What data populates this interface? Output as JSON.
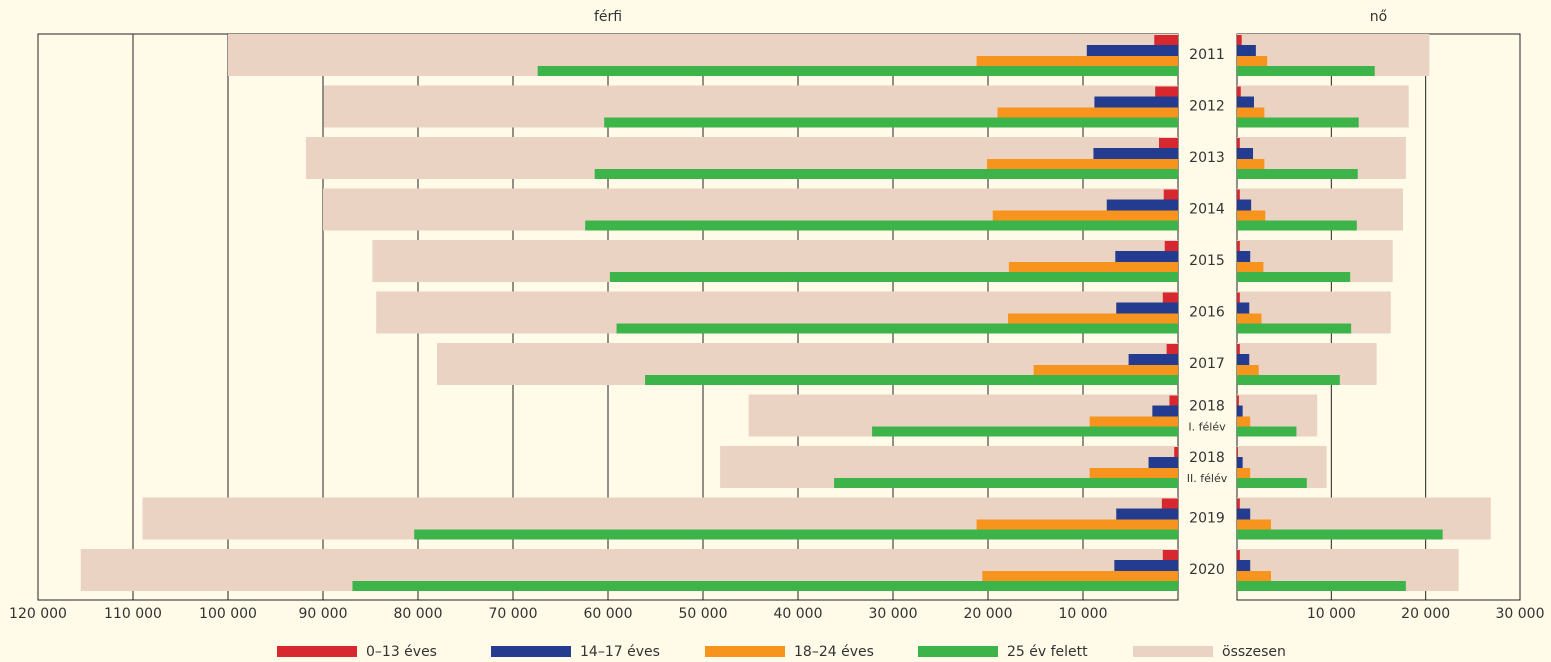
{
  "chart_data": [
    {
      "type": "hbar",
      "title": "férfi",
      "x_reversed": true,
      "categories": [
        "2011",
        "2012",
        "2013",
        "2014",
        "2015",
        "2016",
        "2017",
        "2018",
        "2018",
        "2019",
        "2020"
      ],
      "category_notes": [
        null,
        null,
        null,
        null,
        null,
        null,
        null,
        "I. félév",
        "II. félév",
        null,
        null
      ],
      "series": [
        {
          "name": "0–13 éves",
          "color": "#d7282f",
          "values": [
            2500,
            2400,
            2000,
            1500,
            1400,
            1600,
            1200,
            900,
            400,
            1700,
            1600
          ]
        },
        {
          "name": "14–17 éves",
          "color": "#233c8f",
          "values": [
            9600,
            8800,
            8900,
            7500,
            6600,
            6500,
            5200,
            2700,
            3100,
            6500,
            6700
          ]
        },
        {
          "name": "18–24 éves",
          "color": "#f7941d",
          "values": [
            21200,
            19000,
            20100,
            19500,
            17800,
            17900,
            15200,
            9300,
            9300,
            21200,
            20600
          ]
        },
        {
          "name": "25 év felett",
          "color": "#3cb44a",
          "values": [
            67400,
            60400,
            61400,
            62400,
            59800,
            59100,
            56100,
            32200,
            36200,
            80400,
            86900
          ]
        },
        {
          "name": "összesen",
          "color": "#ebd3c4",
          "values": [
            100000,
            89900,
            91800,
            90000,
            84800,
            84400,
            78000,
            45200,
            48200,
            109000,
            115500
          ]
        }
      ],
      "xlim": [
        0,
        120000
      ],
      "xticks": [
        {
          "value": 120000,
          "label": "120 000"
        },
        {
          "value": 110000,
          "label": "110 000"
        },
        {
          "value": 100000,
          "label": "100 000"
        },
        {
          "value": 90000,
          "label": "90 000"
        },
        {
          "value": 80000,
          "label": "80 000"
        },
        {
          "value": 70000,
          "label": "70 000"
        },
        {
          "value": 60000,
          "label": "60 000"
        },
        {
          "value": 50000,
          "label": "50 000"
        },
        {
          "value": 40000,
          "label": "40 000"
        },
        {
          "value": 30000,
          "label": "30 000"
        },
        {
          "value": 20000,
          "label": "20 000"
        },
        {
          "value": 10000,
          "label": "10 000"
        }
      ],
      "grid": true
    },
    {
      "type": "hbar",
      "title": "nő",
      "x_reversed": false,
      "series": [
        {
          "color": "#d7282f",
          "values": [
            500,
            400,
            300,
            300,
            300,
            300,
            300,
            200,
            100,
            300,
            300
          ]
        },
        {
          "color": "#233c8f",
          "values": [
            2000,
            1800,
            1700,
            1500,
            1400,
            1300,
            1300,
            600,
            600,
            1400,
            1400
          ]
        },
        {
          "color": "#f7941d",
          "values": [
            3200,
            2900,
            2900,
            3000,
            2800,
            2600,
            2300,
            1400,
            1400,
            3600,
            3600
          ]
        },
        {
          "color": "#3cb44a",
          "values": [
            14600,
            12900,
            12800,
            12700,
            12000,
            12100,
            10900,
            6300,
            7400,
            21800,
            17900
          ]
        },
        {
          "color": "#ebd3c4",
          "values": [
            20400,
            18200,
            17900,
            17600,
            16500,
            16300,
            14800,
            8500,
            9500,
            26900,
            23500
          ]
        }
      ],
      "xlim": [
        0,
        30000
      ],
      "xticks": [
        {
          "value": 10000,
          "label": "10 000"
        },
        {
          "value": 20000,
          "label": "20 000"
        },
        {
          "value": 30000,
          "label": "30 000"
        }
      ],
      "grid": true
    }
  ]
}
